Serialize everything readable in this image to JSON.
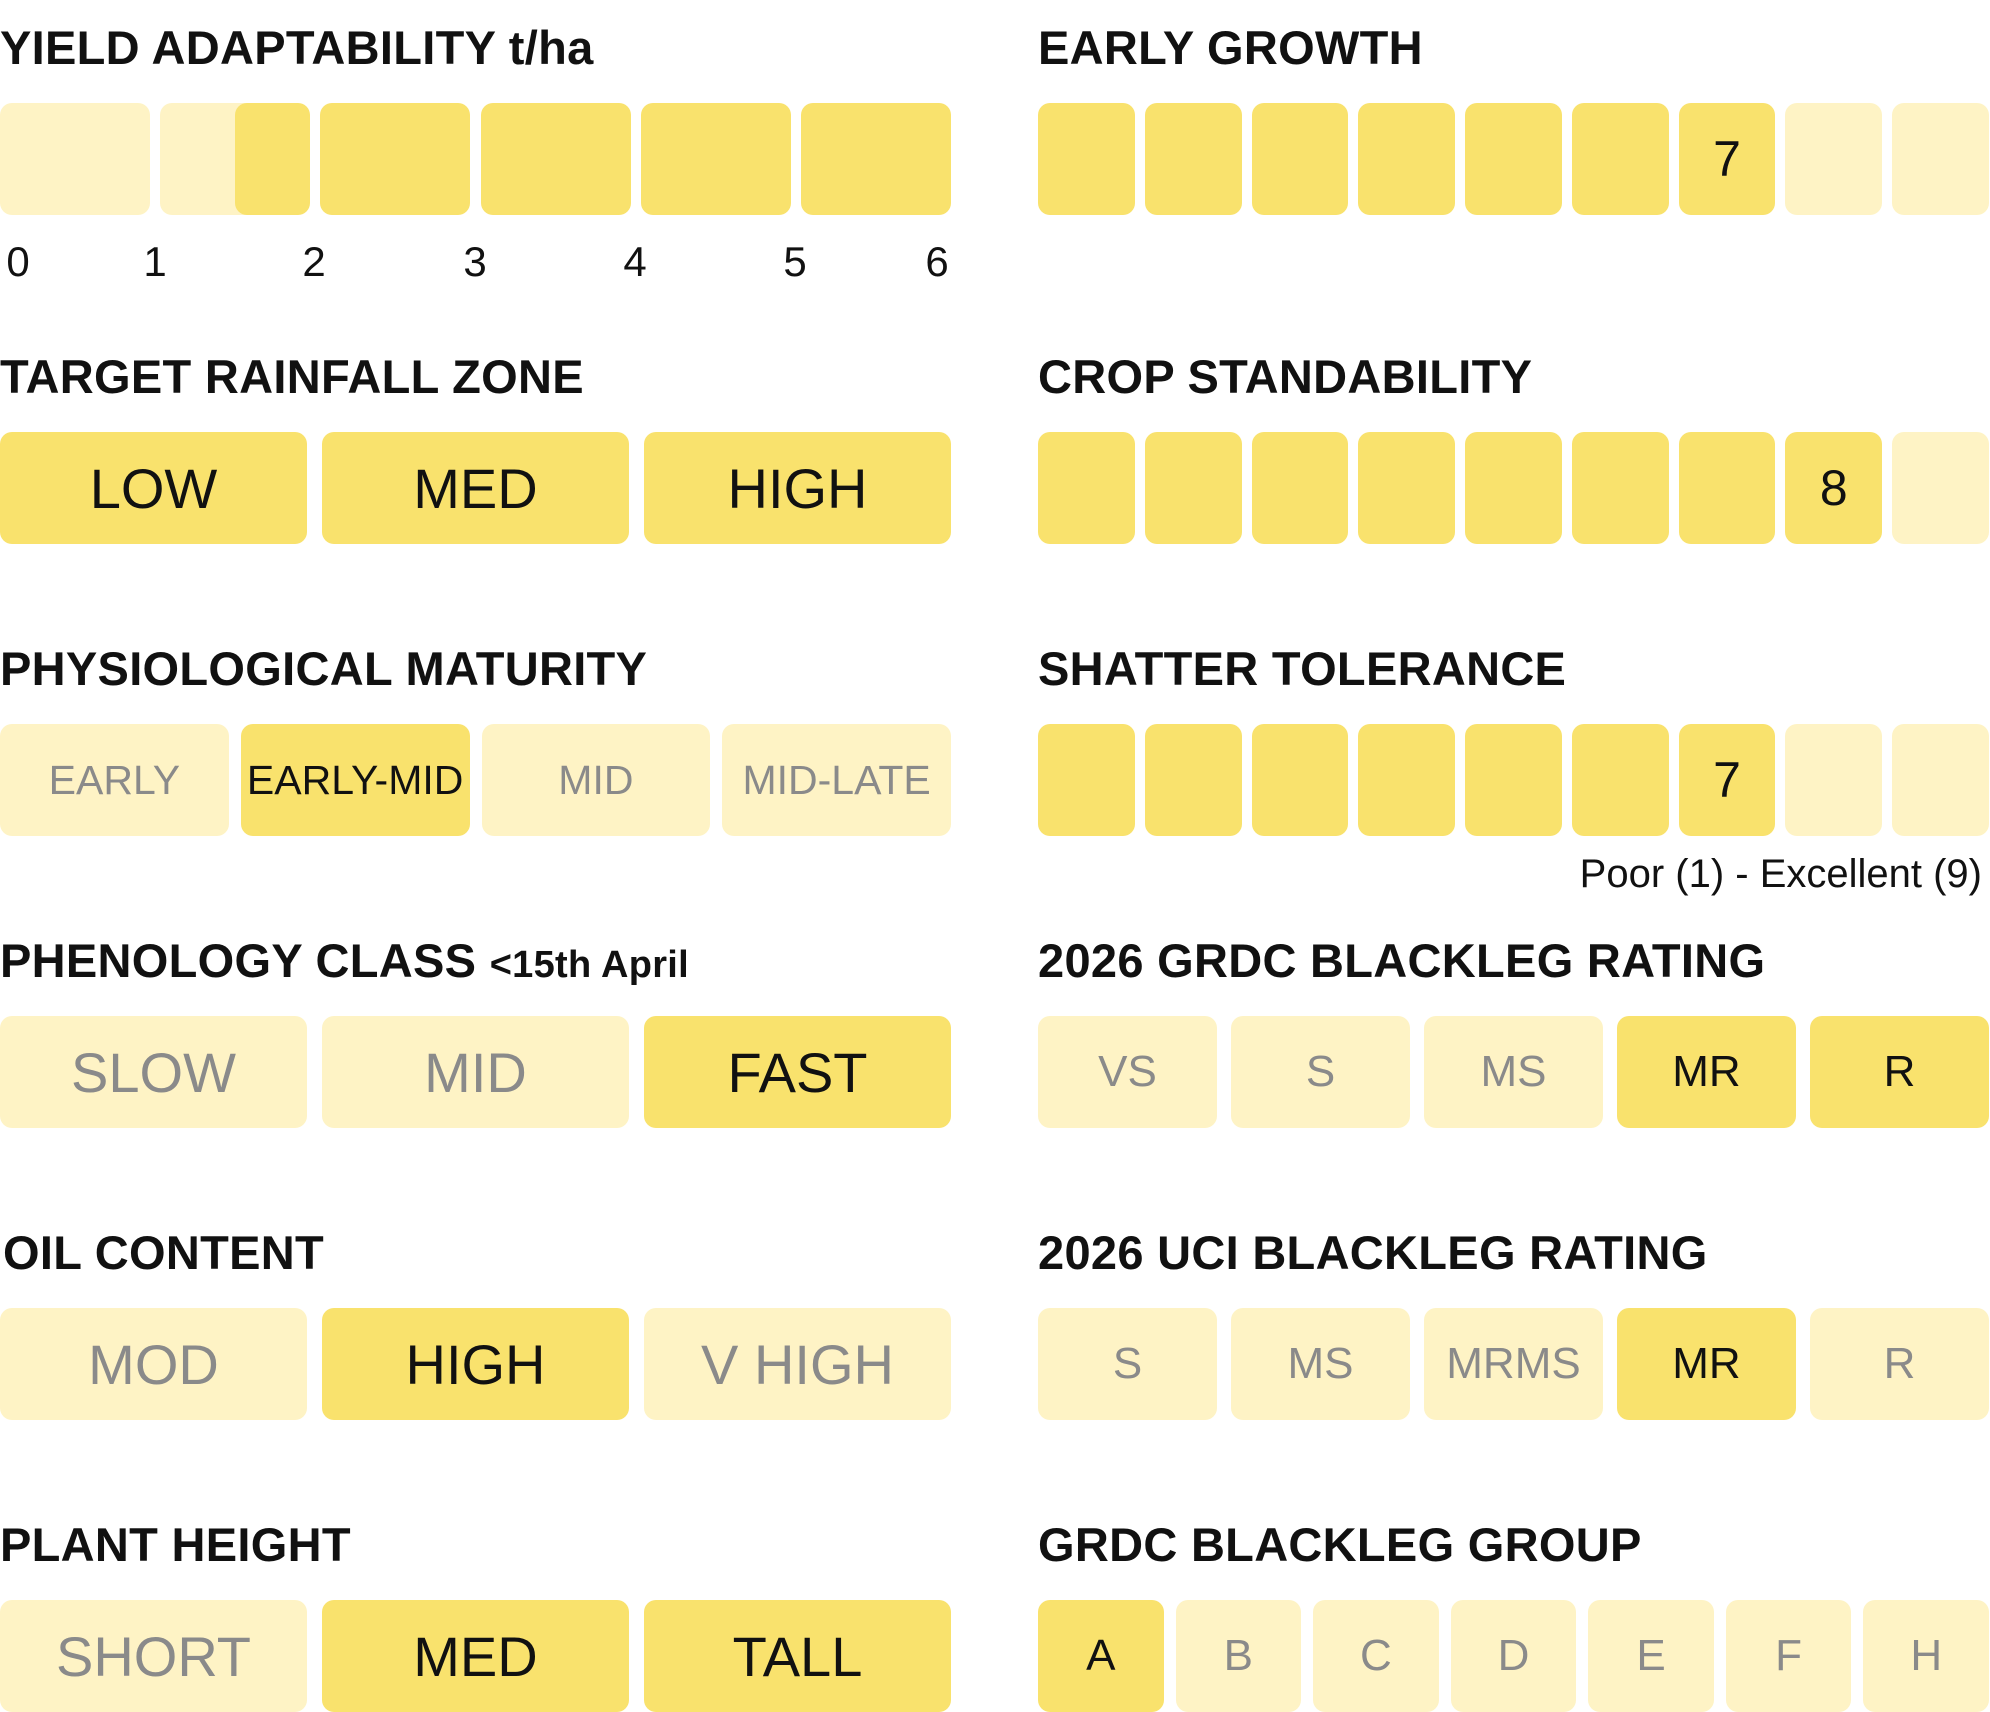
{
  "yield": {
    "title": "YIELD ADAPTABILITY t/ha",
    "ticks": [
      "0",
      "1",
      "2",
      "3",
      "4",
      "5",
      "6"
    ],
    "range_t_ha": [
      1.5,
      6
    ],
    "colors": {
      "on": "#f9e26d",
      "off": "#fef3c5"
    }
  },
  "rainfall": {
    "title": "TARGET RAINFALL ZONE",
    "options": [
      {
        "label": "LOW",
        "selected": true
      },
      {
        "label": "MED",
        "selected": true
      },
      {
        "label": "HIGH",
        "selected": true
      }
    ]
  },
  "maturity": {
    "title": "PHYSIOLOGICAL MATURITY",
    "options": [
      {
        "label": "EARLY",
        "selected": false
      },
      {
        "label": "EARLY-MID",
        "selected": true
      },
      {
        "label": "MID",
        "selected": false
      },
      {
        "label": "MID-LATE",
        "selected": false
      }
    ]
  },
  "phenology": {
    "title": "PHENOLOGY CLASS",
    "title_suffix": "<15th April",
    "options": [
      {
        "label": "SLOW",
        "selected": false
      },
      {
        "label": "MID",
        "selected": false
      },
      {
        "label": "FAST",
        "selected": true
      }
    ]
  },
  "oil": {
    "title": "OIL CONTENT",
    "options": [
      {
        "label": "MOD",
        "selected": false
      },
      {
        "label": "HIGH",
        "selected": true
      },
      {
        "label": "V HIGH",
        "selected": false
      }
    ]
  },
  "height": {
    "title": "PLANT HEIGHT",
    "options": [
      {
        "label": "SHORT",
        "selected": false
      },
      {
        "label": "MED",
        "selected": true
      },
      {
        "label": "TALL",
        "selected": true
      }
    ]
  },
  "early_growth": {
    "title": "EARLY GROWTH",
    "value": "7",
    "max": 9
  },
  "standability": {
    "title": "CROP STANDABILITY",
    "value": "8",
    "max": 9
  },
  "shatter": {
    "title": "SHATTER TOLERANCE",
    "value": "7",
    "max": 9,
    "scale_note": "Poor (1) - Excellent (9)"
  },
  "grdc_rating": {
    "title": "2026 GRDC BLACKLEG RATING",
    "options": [
      {
        "label": "VS",
        "selected": false
      },
      {
        "label": "S",
        "selected": false
      },
      {
        "label": "MS",
        "selected": false
      },
      {
        "label": "MR",
        "selected": true
      },
      {
        "label": "R",
        "selected": true
      }
    ]
  },
  "uci_rating": {
    "title": "2026 UCI BLACKLEG RATING",
    "options": [
      {
        "label": "S",
        "selected": false
      },
      {
        "label": "MS",
        "selected": false
      },
      {
        "label": "MRMS",
        "selected": false
      },
      {
        "label": "MR",
        "selected": true
      },
      {
        "label": "R",
        "selected": false
      }
    ]
  },
  "grdc_group": {
    "title": "GRDC BLACKLEG GROUP",
    "options": [
      {
        "label": "A",
        "selected": true
      },
      {
        "label": "B",
        "selected": false
      },
      {
        "label": "C",
        "selected": false
      },
      {
        "label": "D",
        "selected": false
      },
      {
        "label": "E",
        "selected": false
      },
      {
        "label": "F",
        "selected": false
      },
      {
        "label": "H",
        "selected": false
      }
    ]
  }
}
